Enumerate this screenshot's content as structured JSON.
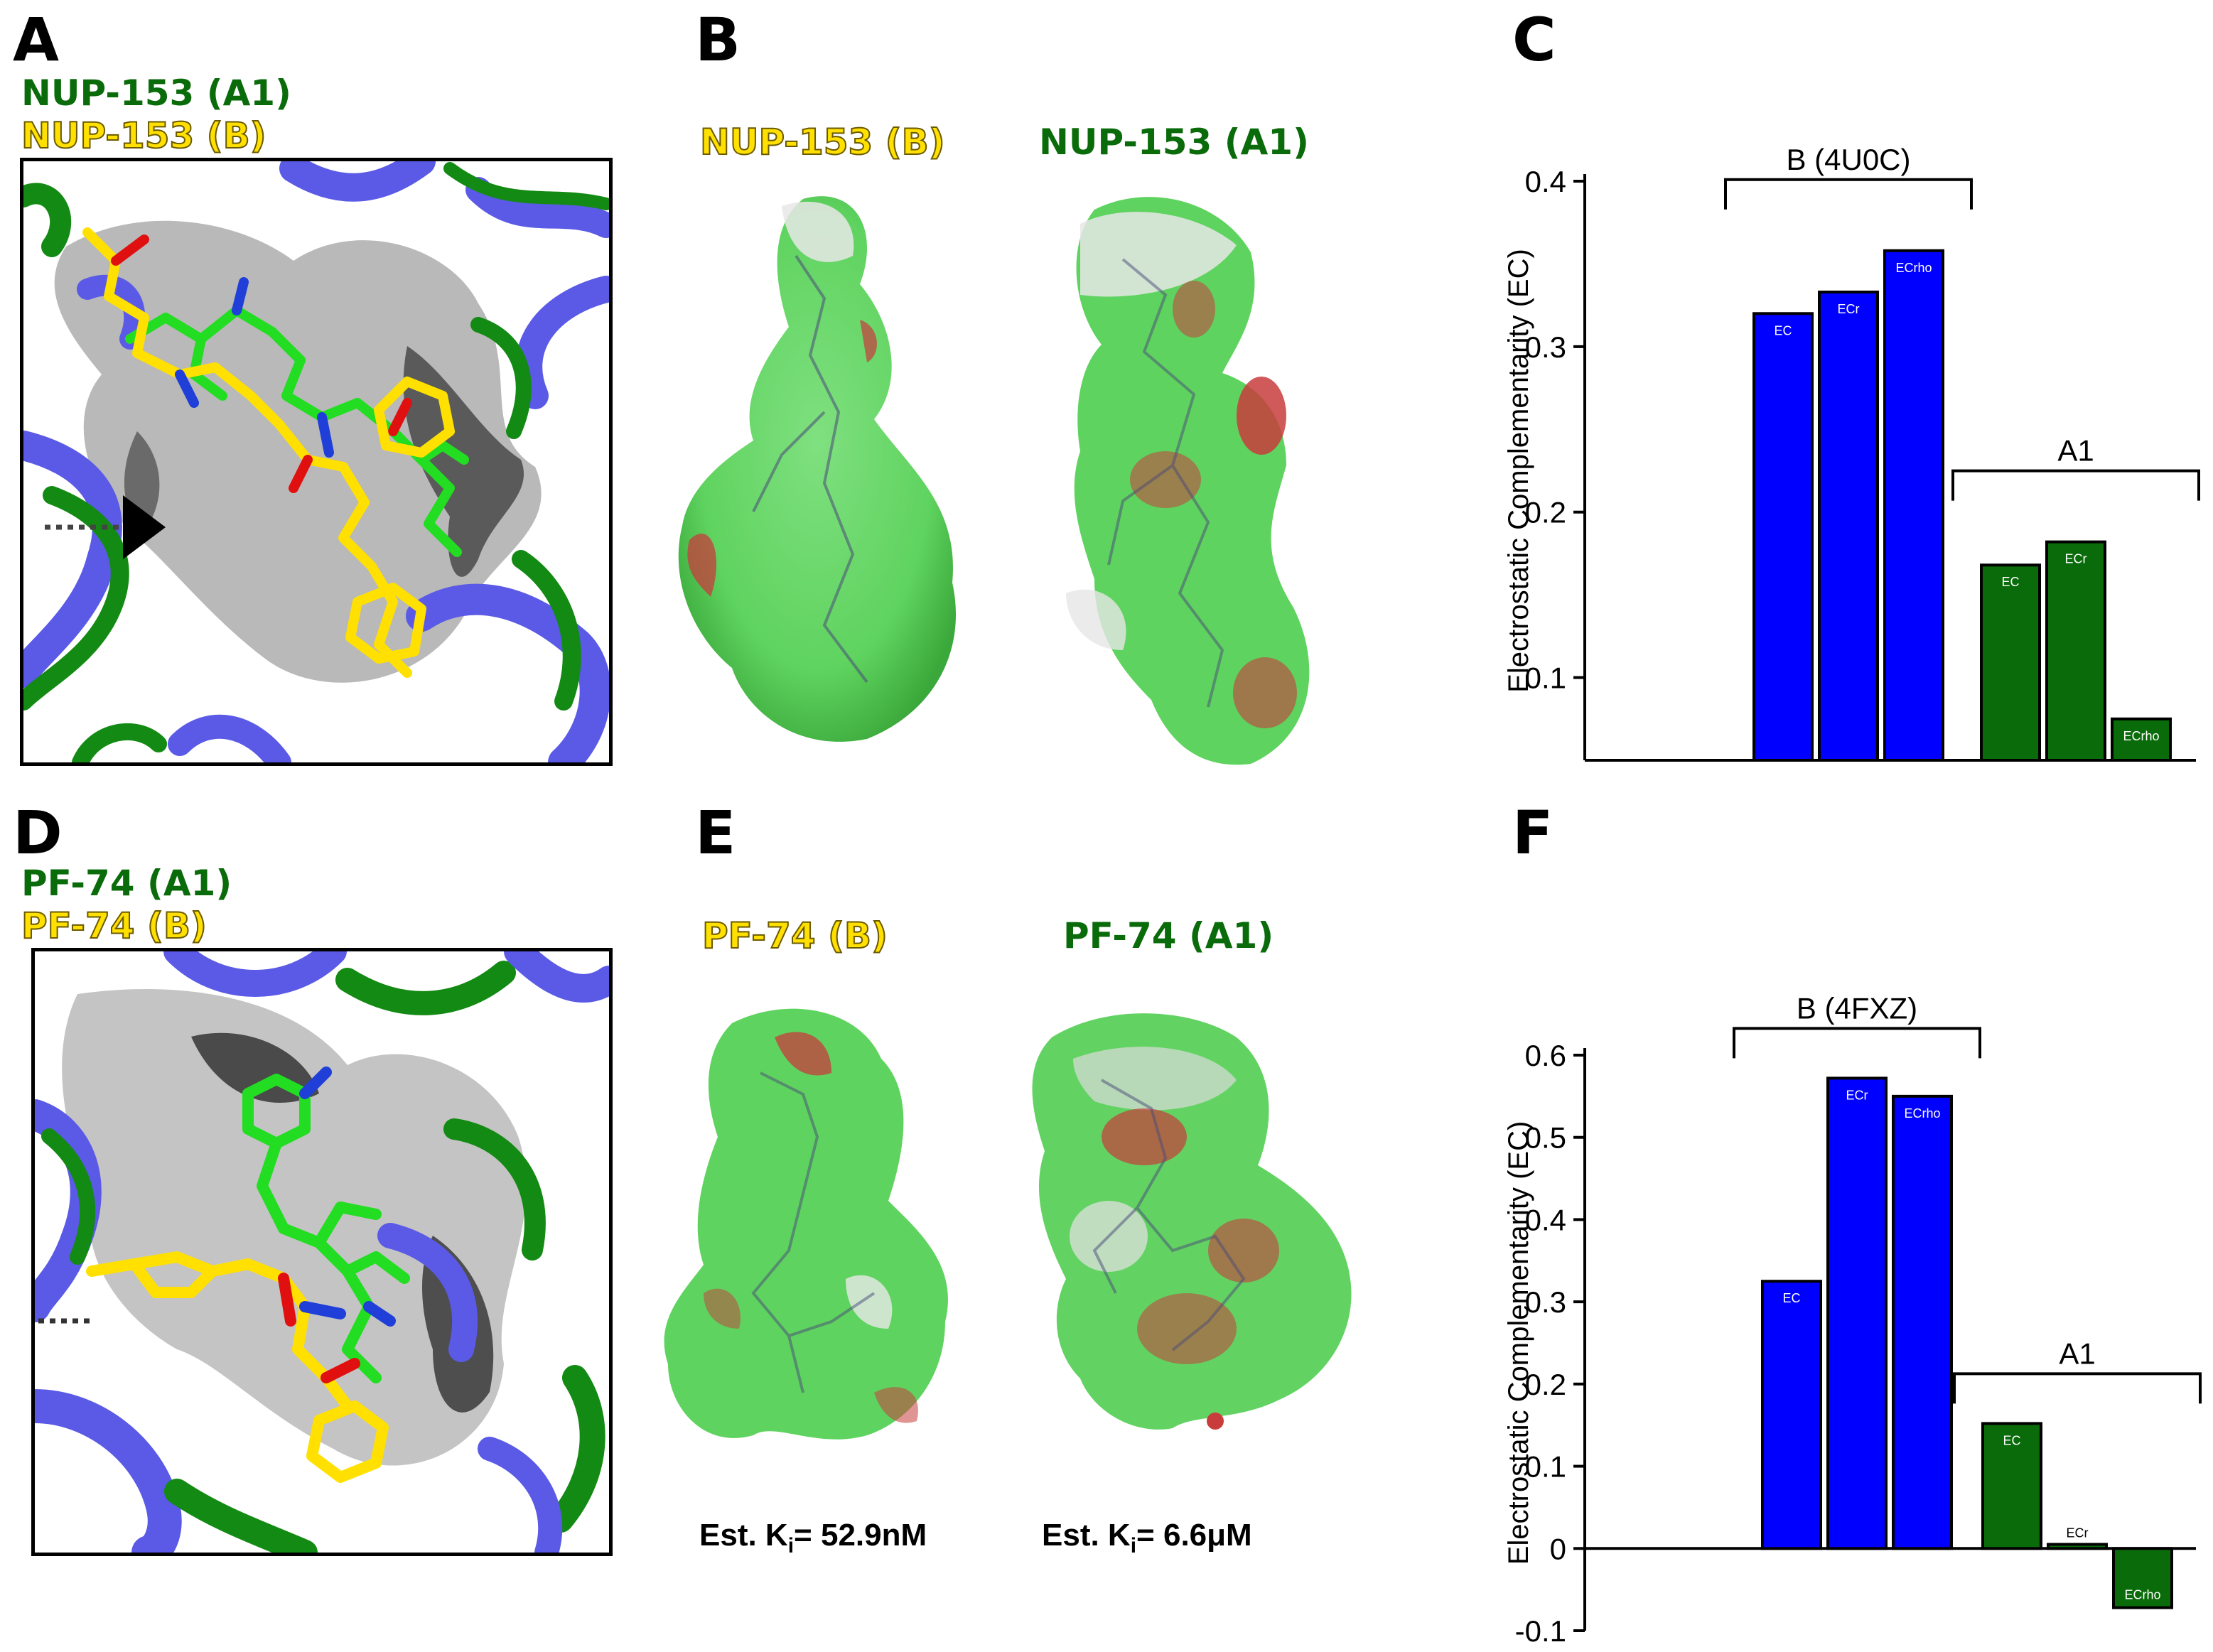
{
  "panels": {
    "A": {
      "letter": "A",
      "label_green": "NUP-153 (A1)",
      "label_yellow": "NUP-153 (B)"
    },
    "B": {
      "letter": "B",
      "label_left": "NUP-153 (B)",
      "label_right": "NUP-153 (A1)"
    },
    "C": {
      "letter": "C"
    },
    "D": {
      "letter": "D",
      "label_green": "PF-74 (A1)",
      "label_yellow": "PF-74 (B)"
    },
    "E": {
      "letter": "E",
      "label_left": "PF-74 (B)",
      "label_right": "PF-74 (A1)",
      "ki_left": {
        "prefix": "Est. K",
        "sub": "i",
        "value": "= 52.9nM"
      },
      "ki_right": {
        "prefix": "Est. K",
        "sub": "i",
        "value": "= 6.6μM"
      }
    },
    "F": {
      "letter": "F"
    }
  },
  "colors": {
    "group_b": "#0000ff",
    "group_a1": "#0a6b0a",
    "label_green": "#0a6b0a",
    "label_yellow": "#ffe000",
    "ribbon_blue": "#5a5ae6",
    "ribbon_green": "#138a13",
    "surface_green": "#5fd35f",
    "surface_red": "#c83c3c"
  },
  "chart_data": [
    {
      "panel": "C",
      "type": "bar",
      "ylabel": "Electrostatic Complementarity (EC)",
      "ylim": [
        0.05,
        0.4
      ],
      "yticks": [
        "0.1",
        "0.2",
        "0.3",
        "0.4"
      ],
      "groups": [
        {
          "name": "B (4U0C)",
          "color": "#0000ff",
          "categories": [
            "EC",
            "ECr",
            "ECrho"
          ],
          "values": [
            0.32,
            0.333,
            0.358
          ]
        },
        {
          "name": "A1",
          "color": "#0a6b0a",
          "categories": [
            "EC",
            "ECr",
            "ECrho"
          ],
          "values": [
            0.168,
            0.182,
            0.075
          ]
        }
      ]
    },
    {
      "panel": "F",
      "type": "bar",
      "ylabel": "Electrostatic Complementarity (EC)",
      "ylim": [
        -0.1,
        0.6
      ],
      "yticks": [
        "-0.1",
        "0",
        "0.1",
        "0.2",
        "0.3",
        "0.4",
        "0.5",
        "0.6"
      ],
      "groups": [
        {
          "name": "B (4FXZ)",
          "color": "#0000ff",
          "categories": [
            "EC",
            "ECr",
            "ECrho"
          ],
          "values": [
            0.325,
            0.572,
            0.55
          ]
        },
        {
          "name": "A1",
          "color": "#0a6b0a",
          "categories": [
            "EC",
            "ECr",
            "ECrho"
          ],
          "values": [
            0.152,
            0.005,
            -0.072
          ]
        }
      ]
    }
  ]
}
